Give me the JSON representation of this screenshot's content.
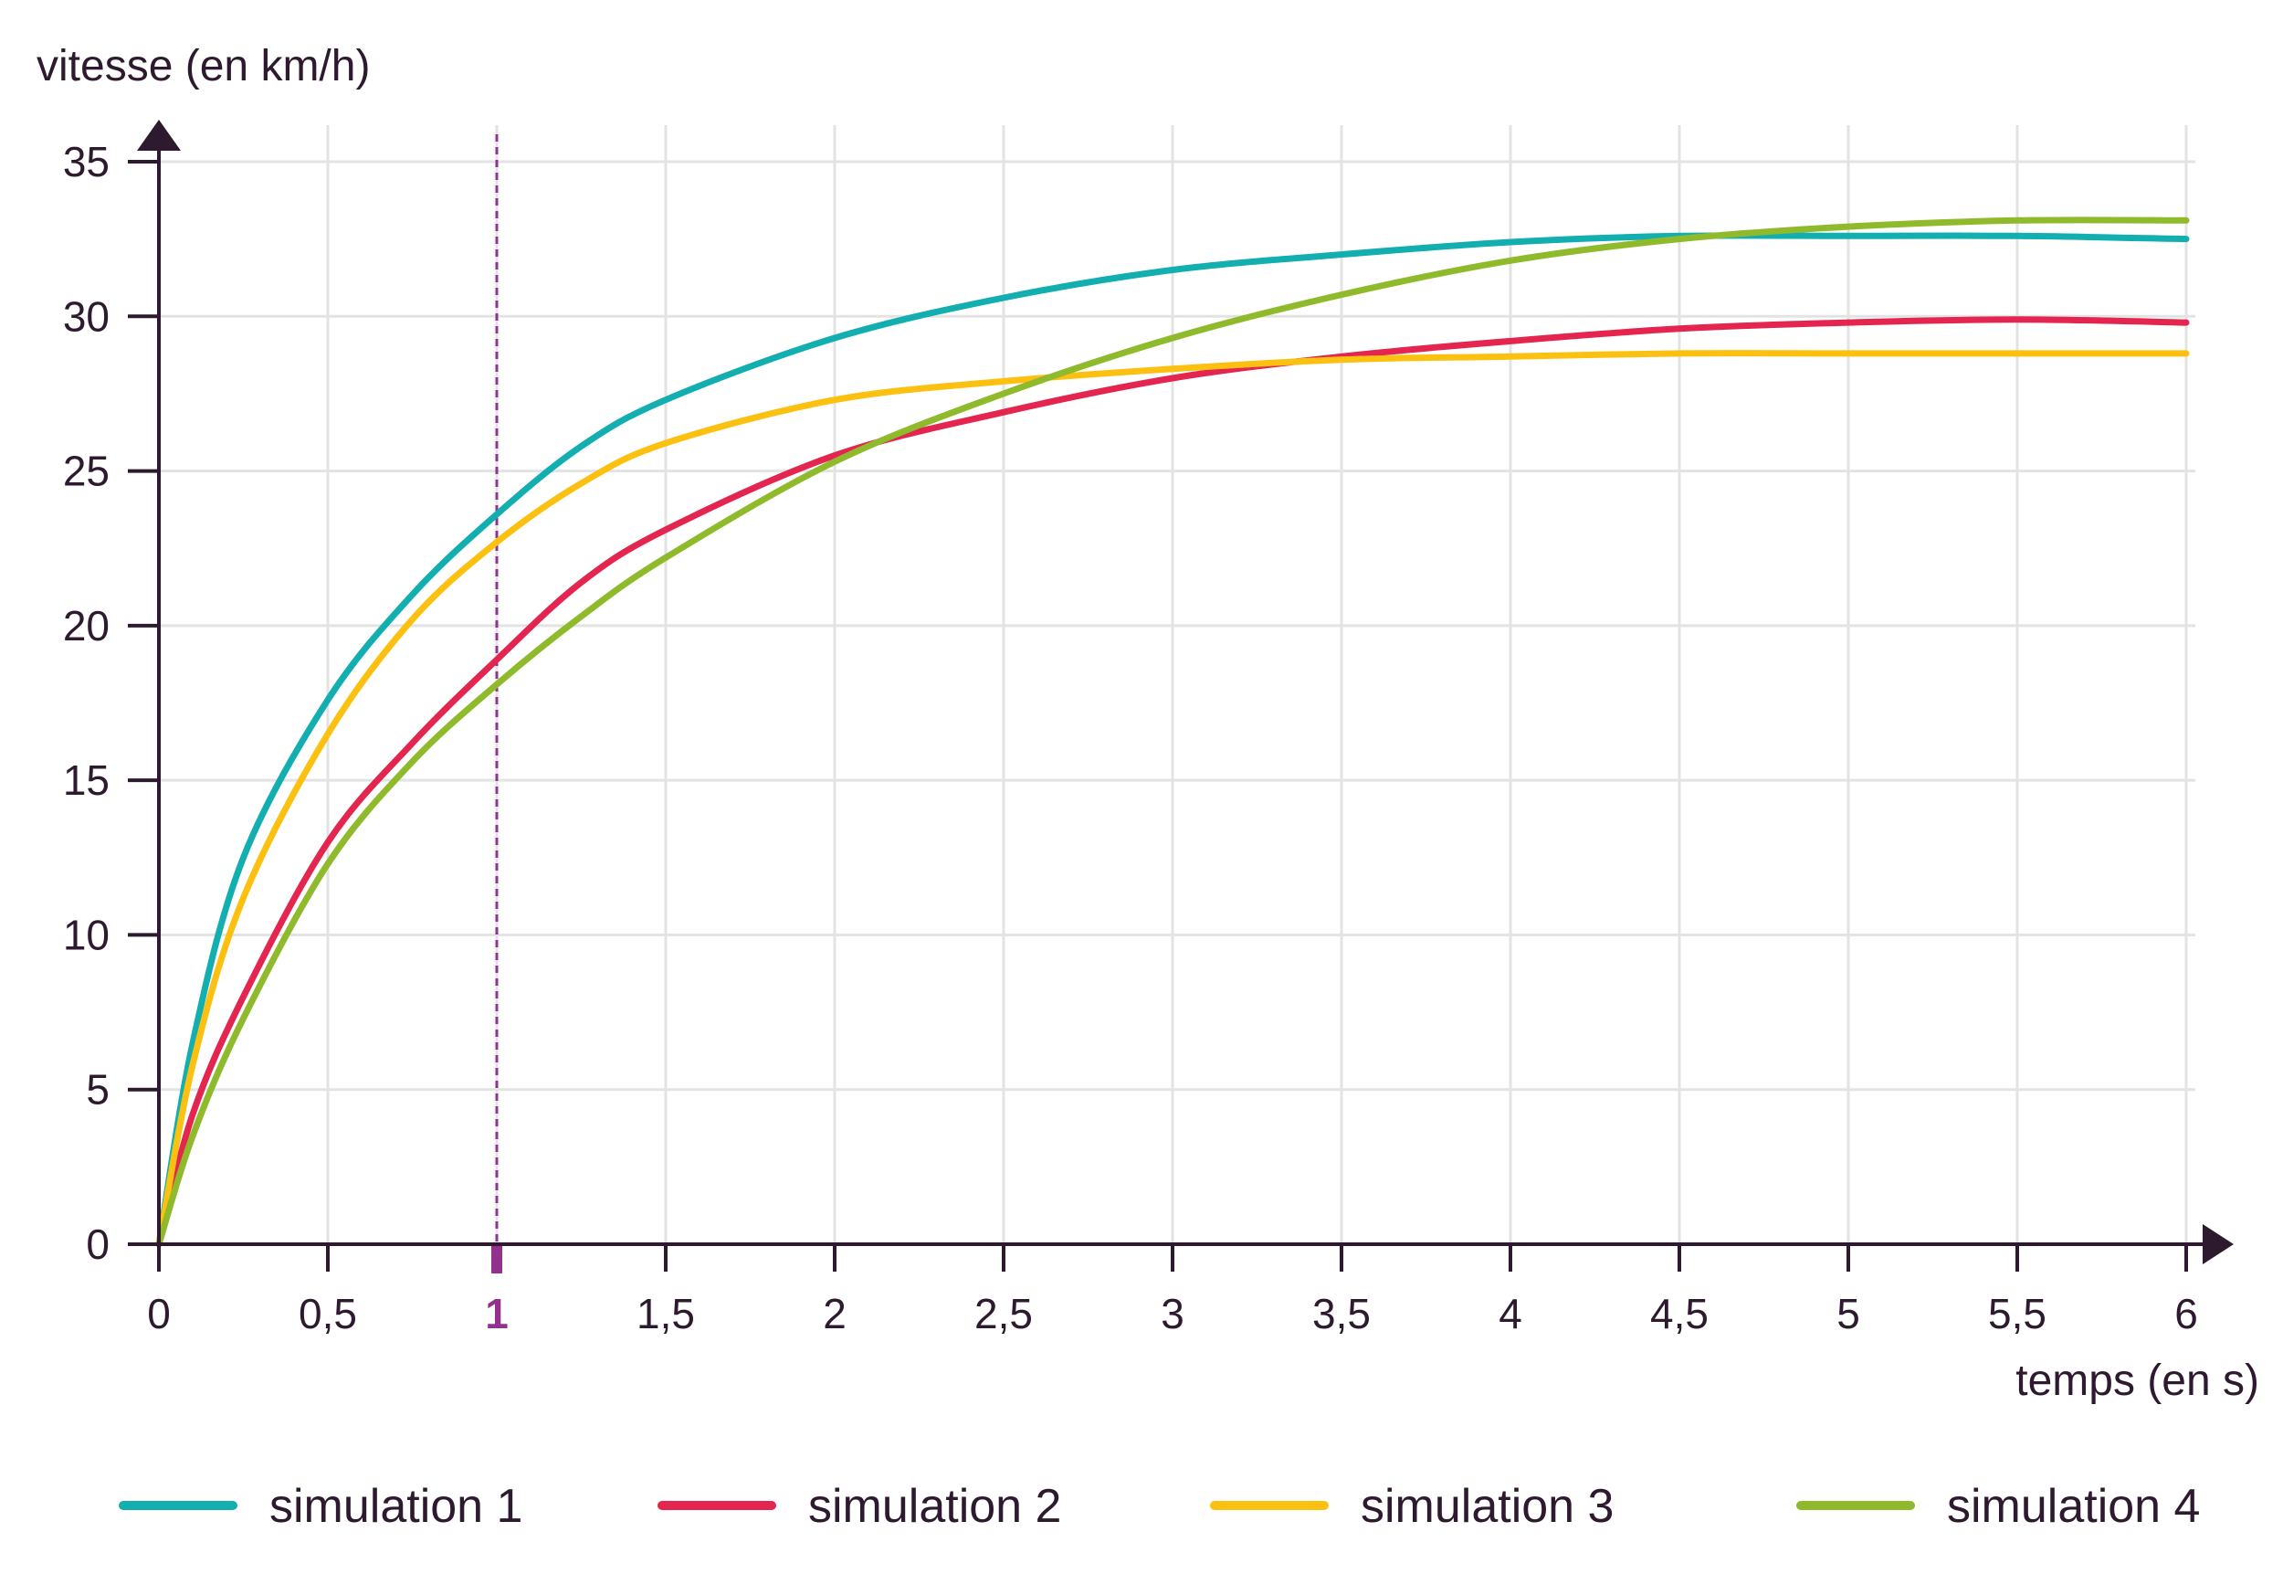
{
  "chart_data": {
    "type": "line",
    "ylabel": "vitesse (en km/h)",
    "xlabel": "temps (en s)",
    "xlim": [
      0,
      6
    ],
    "ylim": [
      0,
      35
    ],
    "x_ticks": [
      "0",
      "0,5",
      "1",
      "1,5",
      "2",
      "2,5",
      "3",
      "3,5",
      "4",
      "4,5",
      "5",
      "5,5",
      "6"
    ],
    "y_ticks": [
      "0",
      "5",
      "10",
      "15",
      "20",
      "25",
      "30",
      "35"
    ],
    "highlight_x": 1,
    "highlight_x_label": "1",
    "grid": true,
    "legend_position": "bottom",
    "x": [
      0,
      0.1,
      0.25,
      0.5,
      0.75,
      1,
      1.25,
      1.5,
      2,
      2.5,
      3,
      3.5,
      4,
      4.5,
      5,
      5.5,
      6
    ],
    "series": [
      {
        "name": "simulation 1",
        "color": "#13aeb0",
        "values": [
          0,
          6.5,
          12.5,
          17.6,
          21.0,
          23.6,
          25.8,
          27.3,
          29.3,
          30.6,
          31.5,
          32.0,
          32.4,
          32.6,
          32.6,
          32.6,
          32.5
        ]
      },
      {
        "name": "simulation 2",
        "color": "#e3254f",
        "values": [
          0,
          4.2,
          8.0,
          13.0,
          16.2,
          18.9,
          21.4,
          23.1,
          25.5,
          26.9,
          28.0,
          28.7,
          29.2,
          29.6,
          29.8,
          29.9,
          29.8
        ]
      },
      {
        "name": "simulation 3",
        "color": "#fbc010",
        "values": [
          0,
          5.8,
          11.2,
          16.5,
          20.2,
          22.7,
          24.6,
          25.9,
          27.3,
          27.9,
          28.3,
          28.6,
          28.7,
          28.8,
          28.8,
          28.8,
          28.8
        ]
      },
      {
        "name": "simulation 4",
        "color": "#8fba2c",
        "values": [
          0,
          3.5,
          7.3,
          12.3,
          15.6,
          18.1,
          20.3,
          22.2,
          25.3,
          27.5,
          29.3,
          30.7,
          31.8,
          32.5,
          32.9,
          33.1,
          33.1
        ]
      }
    ]
  },
  "colors": {
    "axis": "#2d1a2e",
    "grid": "#e3e3e3",
    "highlight": "#93328e"
  }
}
